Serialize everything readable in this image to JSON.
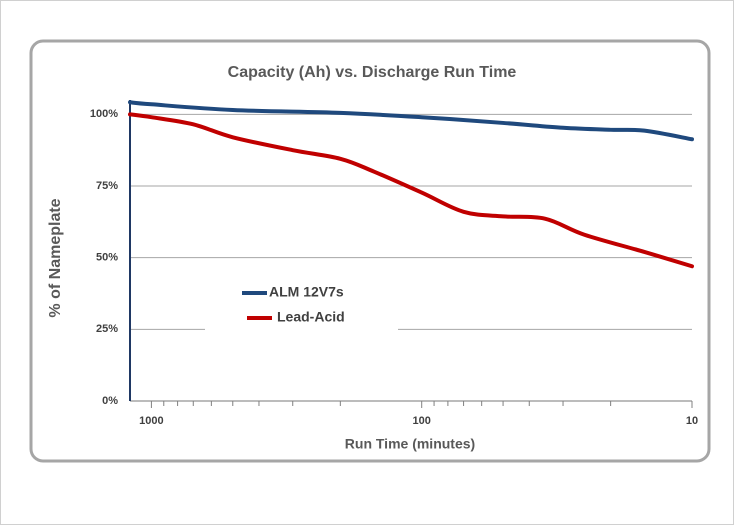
{
  "chart_data": {
    "type": "line",
    "title": "Capacity (Ah) vs. Discharge Run Time",
    "xlabel": "Run Time (minutes)",
    "ylabel": "% of Nameplate",
    "xscale": "log",
    "xlim": [
      1200,
      10
    ],
    "xticks": [
      1000,
      100,
      10
    ],
    "xminor_ticks": [
      900,
      800,
      700,
      600,
      500,
      400,
      300,
      200,
      90,
      80,
      70,
      60,
      50,
      40,
      30,
      20
    ],
    "ylim": [
      0,
      105
    ],
    "yticks": [
      {
        "value": 0,
        "label": "0%"
      },
      {
        "value": 25,
        "label": "25%"
      },
      {
        "value": 50,
        "label": "50%"
      },
      {
        "value": 75,
        "label": "75%"
      },
      {
        "value": 100,
        "label": "100%"
      }
    ],
    "grid": true,
    "legend": "center-left",
    "series": [
      {
        "name": "ALM 12V7s",
        "color": "#1f497d",
        "x": [
          1200,
          1000,
          500,
          200,
          100,
          50,
          30,
          20,
          15,
          10
        ],
        "values": [
          104.2,
          103.5,
          101.5,
          100.5,
          99,
          97,
          95.3,
          94.6,
          94.3,
          91.3
        ]
      },
      {
        "name": "Lead-Acid",
        "color": "#c00000",
        "x": [
          1200,
          1000,
          700,
          500,
          300,
          200,
          150,
          100,
          70,
          50,
          35,
          25,
          15,
          10
        ],
        "values": [
          100,
          99,
          96.5,
          92,
          87.5,
          84.5,
          80,
          72.7,
          66,
          64.4,
          63.6,
          58,
          52,
          47
        ]
      }
    ]
  }
}
